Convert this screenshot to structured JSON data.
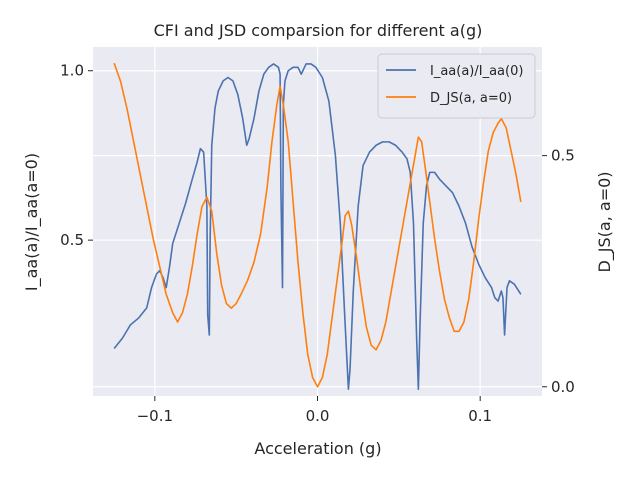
{
  "chart_data": {
    "type": "line",
    "title": "CFI and JSD comparsion for different a(g)",
    "xlabel": "Acceleration (g)",
    "ylabel_left": "I_aa(a)/I_aa(a=0)",
    "ylabel_right": "D_JS(a, a=0)",
    "xlim": [
      -0.138,
      0.138
    ],
    "ylim_left": [
      0.04,
      1.07
    ],
    "ylim_right": [
      -0.02,
      0.735
    ],
    "x_ticks": [
      -0.1,
      0.0,
      0.1
    ],
    "x_tick_labels": [
      "−0.1",
      "0.0",
      "0.1"
    ],
    "y_left_ticks": [
      0.5,
      1.0
    ],
    "y_left_tick_labels": [
      "0.5",
      "1.0"
    ],
    "y_right_ticks": [
      0.0,
      0.5
    ],
    "y_right_tick_labels": [
      "0.0",
      "0.5"
    ],
    "grid": true,
    "legend_position": "top-right",
    "series": [
      {
        "name": "I_aa(a)/I_aa(0)",
        "color": "#4c72b0",
        "axis": "left",
        "points": [
          [
            -0.125,
            0.18
          ],
          [
            -0.12,
            0.21
          ],
          [
            -0.115,
            0.25
          ],
          [
            -0.11,
            0.27
          ],
          [
            -0.105,
            0.3
          ],
          [
            -0.102,
            0.36
          ],
          [
            -0.099,
            0.4
          ],
          [
            -0.097,
            0.41
          ],
          [
            -0.095,
            0.39
          ],
          [
            -0.093,
            0.36
          ],
          [
            -0.091,
            0.42
          ],
          [
            -0.089,
            0.49
          ],
          [
            -0.085,
            0.55
          ],
          [
            -0.081,
            0.61
          ],
          [
            -0.077,
            0.68
          ],
          [
            -0.074,
            0.73
          ],
          [
            -0.072,
            0.77
          ],
          [
            -0.07,
            0.76
          ],
          [
            -0.068,
            0.6
          ],
          [
            -0.0675,
            0.28
          ],
          [
            -0.0665,
            0.22
          ],
          [
            -0.066,
            0.5
          ],
          [
            -0.065,
            0.78
          ],
          [
            -0.063,
            0.89
          ],
          [
            -0.061,
            0.94
          ],
          [
            -0.058,
            0.97
          ],
          [
            -0.055,
            0.98
          ],
          [
            -0.052,
            0.97
          ],
          [
            -0.049,
            0.93
          ],
          [
            -0.046,
            0.86
          ],
          [
            -0.0435,
            0.78
          ],
          [
            -0.042,
            0.8
          ],
          [
            -0.039,
            0.86
          ],
          [
            -0.036,
            0.94
          ],
          [
            -0.033,
            0.99
          ],
          [
            -0.03,
            1.01
          ],
          [
            -0.027,
            1.02
          ],
          [
            -0.024,
            1.01
          ],
          [
            -0.023,
            0.99
          ],
          [
            -0.0225,
            0.65
          ],
          [
            -0.0215,
            0.36
          ],
          [
            -0.021,
            0.9
          ],
          [
            -0.02,
            0.97
          ],
          [
            -0.018,
            1.0
          ],
          [
            -0.015,
            1.01
          ],
          [
            -0.012,
            1.01
          ],
          [
            -0.01,
            0.99
          ],
          [
            -0.007,
            1.02
          ],
          [
            -0.004,
            1.02
          ],
          [
            -0.001,
            1.01
          ],
          [
            0.003,
            0.98
          ],
          [
            0.007,
            0.91
          ],
          [
            0.011,
            0.75
          ],
          [
            0.014,
            0.55
          ],
          [
            0.017,
            0.25
          ],
          [
            0.019,
            0.06
          ],
          [
            0.02,
            0.12
          ],
          [
            0.022,
            0.35
          ],
          [
            0.025,
            0.6
          ],
          [
            0.028,
            0.72
          ],
          [
            0.032,
            0.76
          ],
          [
            0.036,
            0.78
          ],
          [
            0.04,
            0.79
          ],
          [
            0.044,
            0.79
          ],
          [
            0.048,
            0.78
          ],
          [
            0.052,
            0.76
          ],
          [
            0.055,
            0.74
          ],
          [
            0.057,
            0.7
          ],
          [
            0.059,
            0.55
          ],
          [
            0.061,
            0.2
          ],
          [
            0.062,
            0.06
          ],
          [
            0.063,
            0.25
          ],
          [
            0.065,
            0.55
          ],
          [
            0.067,
            0.66
          ],
          [
            0.069,
            0.7
          ],
          [
            0.072,
            0.7
          ],
          [
            0.075,
            0.68
          ],
          [
            0.079,
            0.66
          ],
          [
            0.083,
            0.64
          ],
          [
            0.087,
            0.6
          ],
          [
            0.091,
            0.55
          ],
          [
            0.095,
            0.48
          ],
          [
            0.099,
            0.43
          ],
          [
            0.103,
            0.39
          ],
          [
            0.107,
            0.36
          ],
          [
            0.109,
            0.33
          ],
          [
            0.111,
            0.32
          ],
          [
            0.113,
            0.35
          ],
          [
            0.114,
            0.33
          ],
          [
            0.115,
            0.22
          ],
          [
            0.1165,
            0.36
          ],
          [
            0.118,
            0.38
          ],
          [
            0.121,
            0.37
          ],
          [
            0.125,
            0.34
          ]
        ]
      },
      {
        "name": "D_JS(a, a=0)",
        "color": "#ff7f0e",
        "axis": "right",
        "points": [
          [
            -0.125,
            0.7
          ],
          [
            -0.121,
            0.66
          ],
          [
            -0.117,
            0.6
          ],
          [
            -0.113,
            0.53
          ],
          [
            -0.109,
            0.46
          ],
          [
            -0.105,
            0.39
          ],
          [
            -0.101,
            0.32
          ],
          [
            -0.097,
            0.26
          ],
          [
            -0.093,
            0.2
          ],
          [
            -0.089,
            0.16
          ],
          [
            -0.086,
            0.14
          ],
          [
            -0.083,
            0.16
          ],
          [
            -0.08,
            0.2
          ],
          [
            -0.077,
            0.26
          ],
          [
            -0.074,
            0.33
          ],
          [
            -0.071,
            0.39
          ],
          [
            -0.068,
            0.41
          ],
          [
            -0.065,
            0.38
          ],
          [
            -0.062,
            0.29
          ],
          [
            -0.059,
            0.22
          ],
          [
            -0.056,
            0.18
          ],
          [
            -0.053,
            0.17
          ],
          [
            -0.05,
            0.18
          ],
          [
            -0.047,
            0.2
          ],
          [
            -0.043,
            0.23
          ],
          [
            -0.039,
            0.27
          ],
          [
            -0.035,
            0.33
          ],
          [
            -0.031,
            0.43
          ],
          [
            -0.028,
            0.53
          ],
          [
            -0.025,
            0.61
          ],
          [
            -0.023,
            0.65
          ],
          [
            -0.021,
            0.61
          ],
          [
            -0.018,
            0.53
          ],
          [
            -0.015,
            0.4
          ],
          [
            -0.012,
            0.27
          ],
          [
            -0.009,
            0.16
          ],
          [
            -0.006,
            0.07
          ],
          [
            -0.003,
            0.02
          ],
          [
            0.0,
            0.0
          ],
          [
            0.003,
            0.02
          ],
          [
            0.006,
            0.07
          ],
          [
            0.009,
            0.15
          ],
          [
            0.012,
            0.23
          ],
          [
            0.015,
            0.31
          ],
          [
            0.017,
            0.37
          ],
          [
            0.019,
            0.38
          ],
          [
            0.021,
            0.35
          ],
          [
            0.024,
            0.28
          ],
          [
            0.027,
            0.2
          ],
          [
            0.03,
            0.13
          ],
          [
            0.033,
            0.09
          ],
          [
            0.036,
            0.08
          ],
          [
            0.039,
            0.1
          ],
          [
            0.042,
            0.14
          ],
          [
            0.045,
            0.2
          ],
          [
            0.049,
            0.28
          ],
          [
            0.053,
            0.36
          ],
          [
            0.057,
            0.44
          ],
          [
            0.06,
            0.5
          ],
          [
            0.062,
            0.54
          ],
          [
            0.064,
            0.53
          ],
          [
            0.066,
            0.48
          ],
          [
            0.069,
            0.4
          ],
          [
            0.072,
            0.32
          ],
          [
            0.075,
            0.25
          ],
          [
            0.078,
            0.19
          ],
          [
            0.081,
            0.15
          ],
          [
            0.084,
            0.12
          ],
          [
            0.087,
            0.12
          ],
          [
            0.09,
            0.14
          ],
          [
            0.093,
            0.19
          ],
          [
            0.096,
            0.27
          ],
          [
            0.099,
            0.36
          ],
          [
            0.102,
            0.44
          ],
          [
            0.105,
            0.51
          ],
          [
            0.108,
            0.55
          ],
          [
            0.111,
            0.57
          ],
          [
            0.113,
            0.58
          ],
          [
            0.116,
            0.56
          ],
          [
            0.119,
            0.51
          ],
          [
            0.122,
            0.46
          ],
          [
            0.125,
            0.4
          ]
        ]
      }
    ]
  }
}
